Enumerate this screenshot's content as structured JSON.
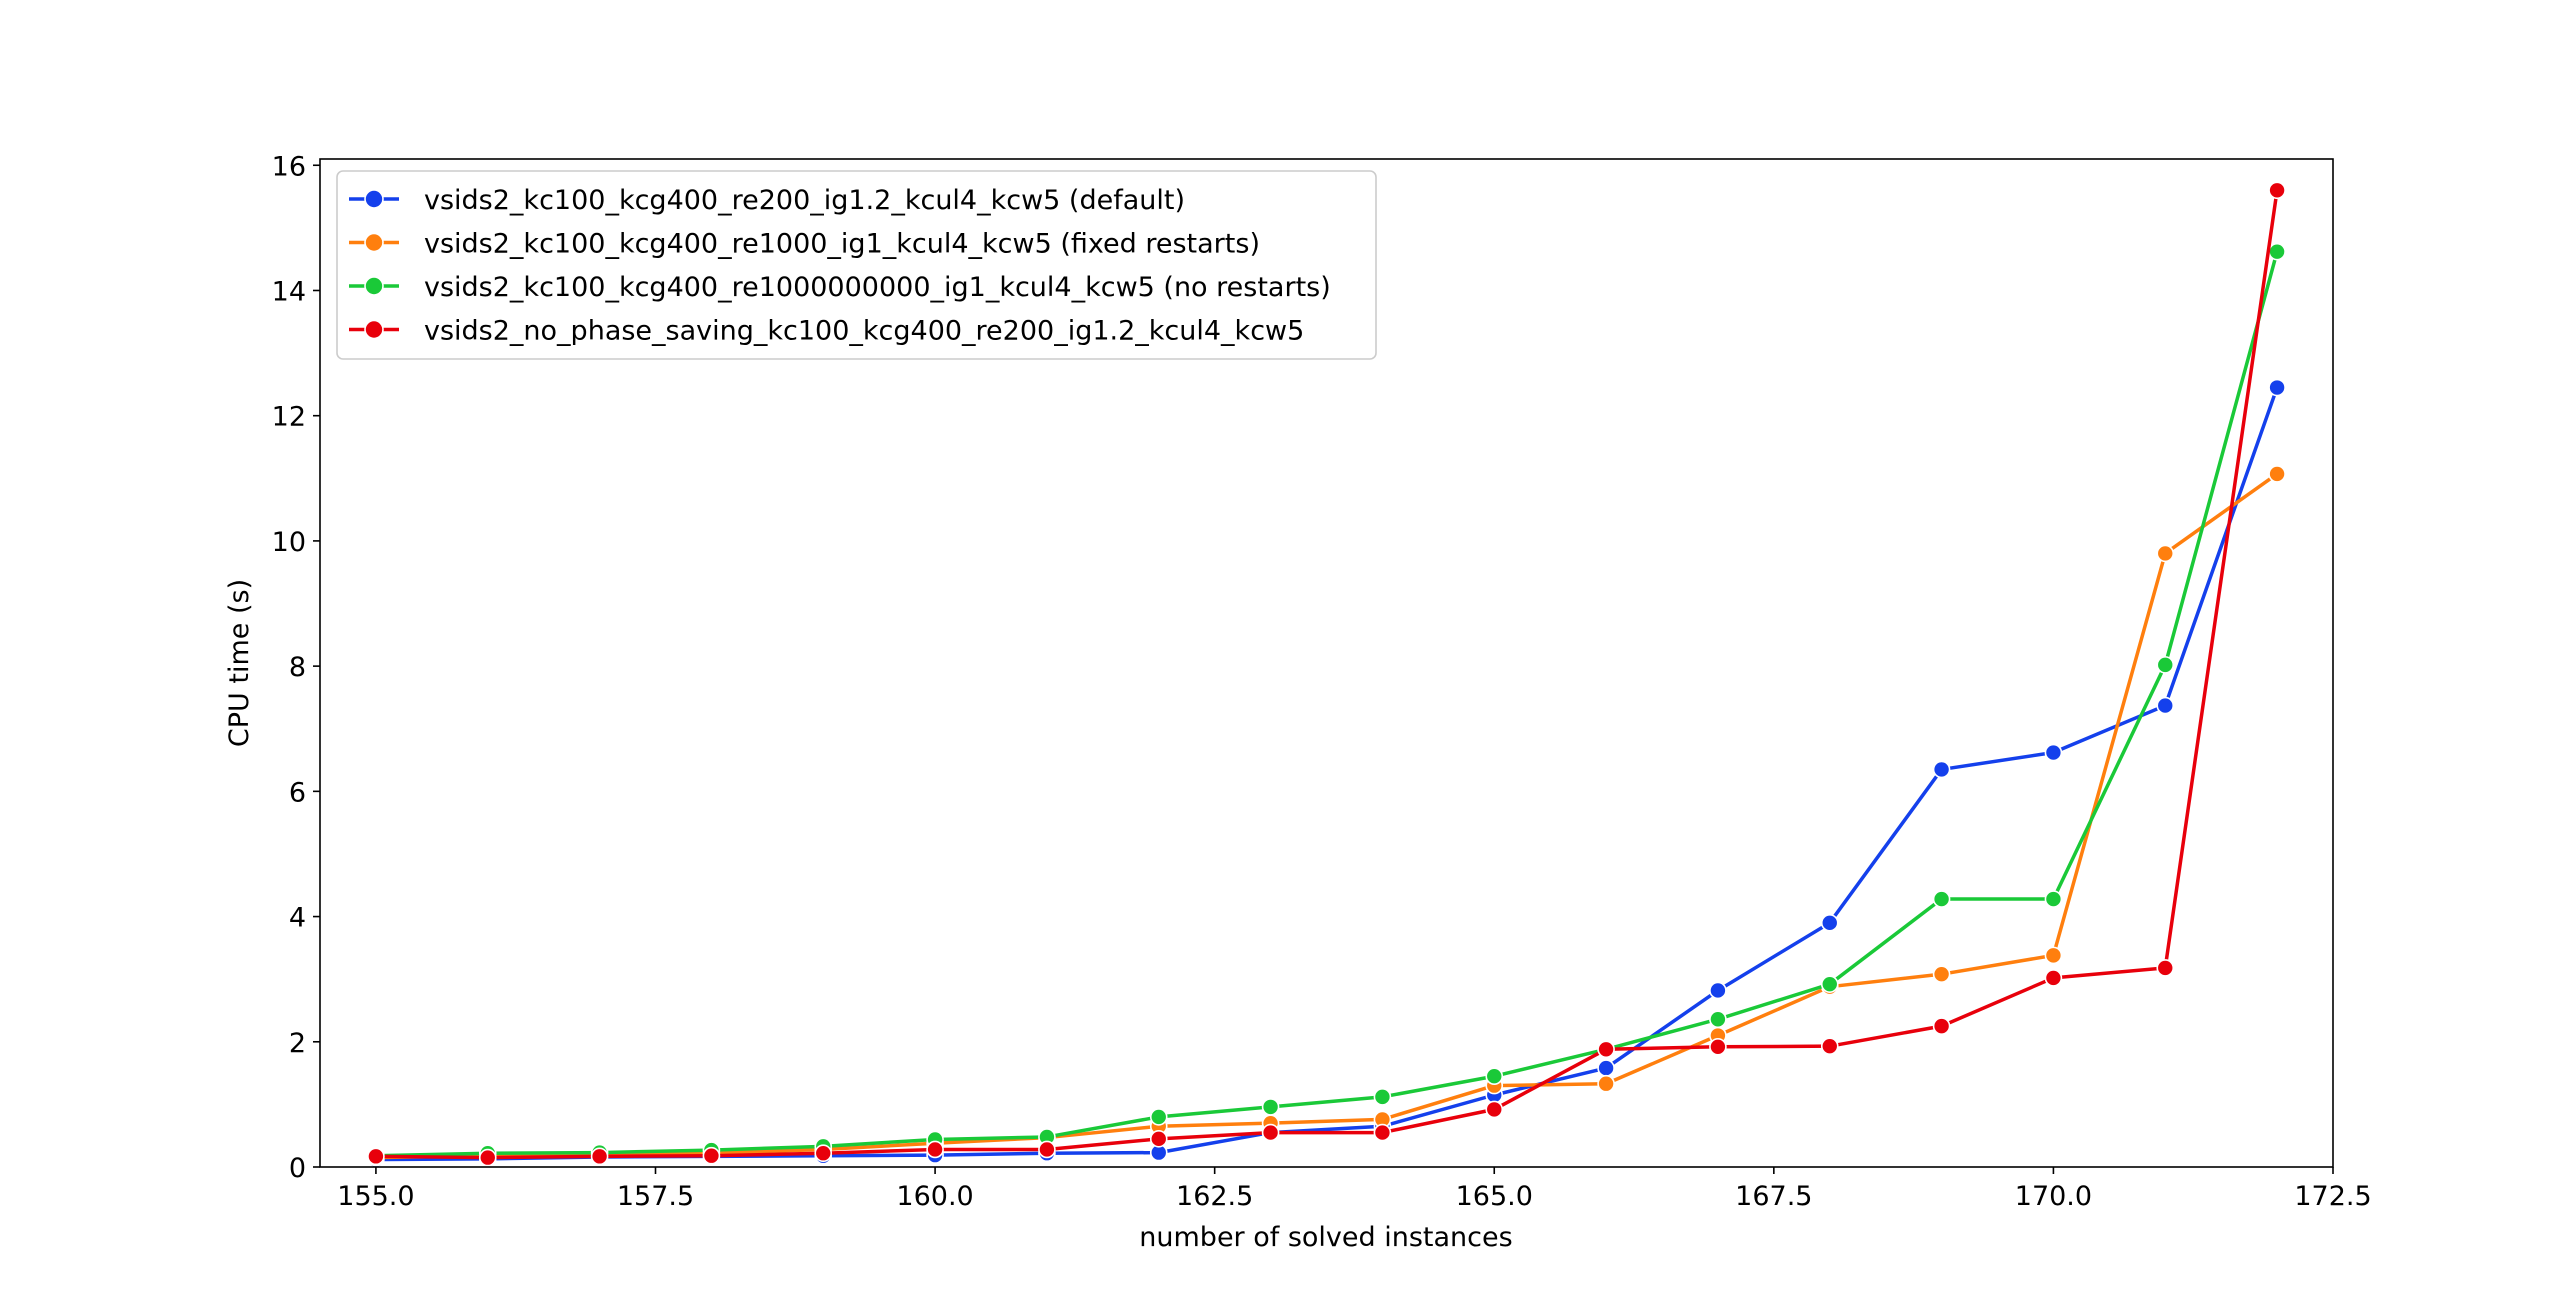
{
  "chart_data": {
    "type": "line",
    "title": "",
    "xlabel": "number of solved instances",
    "ylabel": "CPU time (s)",
    "xlim": [
      154.5,
      172.5
    ],
    "ylim": [
      0,
      16.1
    ],
    "xticks": [
      155.0,
      157.5,
      160.0,
      162.5,
      165.0,
      167.5,
      170.0,
      172.5
    ],
    "xtick_labels": [
      "155.0",
      "157.5",
      "160.0",
      "162.5",
      "165.0",
      "167.5",
      "170.0",
      "172.5"
    ],
    "yticks": [
      0,
      2,
      4,
      6,
      8,
      10,
      12,
      14,
      16
    ],
    "ytick_labels": [
      "0",
      "2",
      "4",
      "6",
      "8",
      "10",
      "12",
      "14",
      "16"
    ],
    "grid": false,
    "legend_position": "top-left",
    "x": [
      155,
      156,
      157,
      158,
      159,
      160,
      161,
      162,
      163,
      164,
      165,
      166,
      167,
      168,
      169,
      170,
      171,
      172
    ],
    "series": [
      {
        "name": "vsids2_kc100_kcg400_re200_ig1.2_kcul4_kcw5 (default)",
        "color": "#1440ec",
        "values": [
          0.12,
          0.13,
          0.16,
          0.17,
          0.18,
          0.19,
          0.22,
          0.23,
          0.55,
          0.65,
          1.15,
          1.58,
          2.82,
          3.9,
          6.35,
          6.62,
          7.37,
          12.45
        ]
      },
      {
        "name": "vsids2_kc100_kcg400_re1000_ig1_kcul4_kcw5 (fixed restarts)",
        "color": "#ff7f0e",
        "values": [
          0.15,
          0.18,
          0.2,
          0.22,
          0.28,
          0.38,
          0.47,
          0.65,
          0.7,
          0.76,
          1.3,
          1.33,
          2.1,
          2.88,
          3.08,
          3.38,
          9.8,
          11.07
        ]
      },
      {
        "name": "vsids2_kc100_kcg400_re1000000000_ig1_kcul4_kcw5 (no restarts)",
        "color": "#1ac938",
        "values": [
          0.18,
          0.22,
          0.23,
          0.27,
          0.33,
          0.44,
          0.48,
          0.8,
          0.96,
          1.12,
          1.45,
          1.88,
          2.36,
          2.92,
          4.28,
          4.28,
          8.02,
          14.62
        ]
      },
      {
        "name": "vsids2_no_phase_saving_kc100_kcg400_re200_ig1.2_kcul4_kcw5",
        "color": "#e8000b",
        "values": [
          0.17,
          0.15,
          0.17,
          0.18,
          0.22,
          0.28,
          0.28,
          0.45,
          0.55,
          0.55,
          0.92,
          1.88,
          1.92,
          1.93,
          2.25,
          3.02,
          3.18,
          15.6
        ]
      }
    ]
  }
}
